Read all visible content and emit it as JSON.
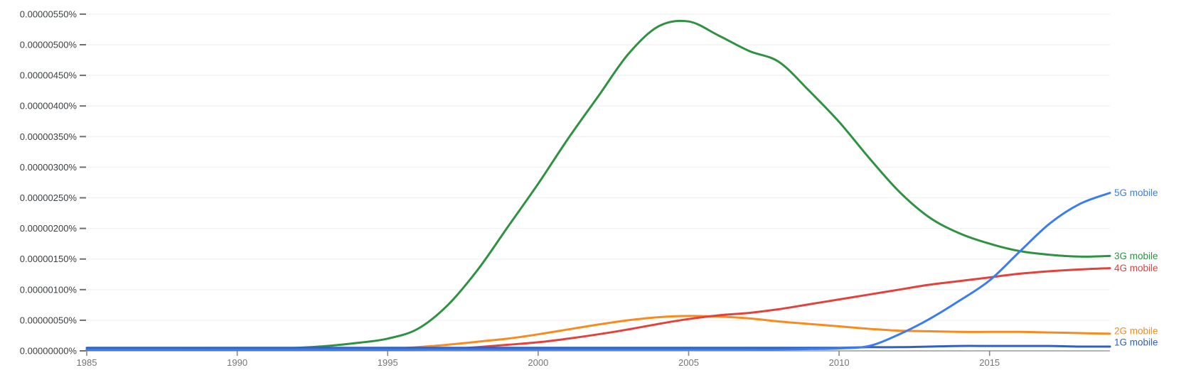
{
  "chart_data": {
    "type": "line",
    "title": "",
    "xlabel": "",
    "ylabel": "",
    "grid": true,
    "legend_position": "line-end-labels-right",
    "x_axis": {
      "range": [
        1985,
        2019
      ],
      "tick_years": [
        1985,
        1990,
        1995,
        2000,
        2005,
        2010,
        2015
      ],
      "tick_labels": [
        "1985",
        "1990",
        "1995",
        "2000",
        "2005",
        "2010",
        "2015"
      ]
    },
    "y_axis": {
      "unit": "percent",
      "range_e6": [
        0,
        5.75
      ],
      "tick_values_e6": [
        0,
        0.5,
        1.0,
        1.5,
        2.0,
        2.5,
        3.0,
        3.5,
        4.0,
        4.5,
        5.0,
        5.5
      ],
      "tick_labels": [
        "0.00000000%",
        "0.00000050%",
        "0.00000100%",
        "0.00000150%",
        "0.00000200%",
        "0.00000250%",
        "0.00000300%",
        "0.00000350%",
        "0.00000400%",
        "0.00000450%",
        "0.00000500%",
        "0.00000550%"
      ]
    },
    "value_scale_note": "series values are in millionths of a percent (1e-6 %)",
    "years": [
      1985,
      1986,
      1987,
      1988,
      1989,
      1990,
      1991,
      1992,
      1993,
      1994,
      1995,
      1996,
      1997,
      1998,
      1999,
      2000,
      2001,
      2002,
      2003,
      2004,
      2005,
      2006,
      2007,
      2008,
      2009,
      2010,
      2011,
      2012,
      2013,
      2014,
      2015,
      2016,
      2017,
      2018,
      2019
    ],
    "series": [
      {
        "name": "1G mobile",
        "color": "#3060c0",
        "draw_order": 4,
        "values_e6": [
          0.05,
          0.05,
          0.05,
          0.05,
          0.05,
          0.05,
          0.05,
          0.05,
          0.05,
          0.05,
          0.05,
          0.05,
          0.05,
          0.05,
          0.05,
          0.05,
          0.05,
          0.05,
          0.05,
          0.05,
          0.05,
          0.05,
          0.05,
          0.05,
          0.05,
          0.05,
          0.06,
          0.06,
          0.07,
          0.08,
          0.08,
          0.08,
          0.08,
          0.07,
          0.07
        ]
      },
      {
        "name": "2G mobile",
        "color": "#f78b1e",
        "draw_order": 1,
        "values_e6": [
          0.02,
          0.02,
          0.02,
          0.02,
          0.02,
          0.02,
          0.02,
          0.02,
          0.02,
          0.02,
          0.03,
          0.06,
          0.1,
          0.15,
          0.2,
          0.27,
          0.35,
          0.43,
          0.5,
          0.55,
          0.57,
          0.56,
          0.53,
          0.48,
          0.44,
          0.4,
          0.36,
          0.33,
          0.32,
          0.31,
          0.31,
          0.31,
          0.3,
          0.29,
          0.28
        ]
      },
      {
        "name": "3G mobile",
        "color": "#2f9242",
        "draw_order": 3,
        "values_e6": [
          0.02,
          0.02,
          0.02,
          0.02,
          0.02,
          0.03,
          0.03,
          0.05,
          0.08,
          0.13,
          0.2,
          0.36,
          0.75,
          1.33,
          2.03,
          2.73,
          3.47,
          4.16,
          4.85,
          5.3,
          5.38,
          5.15,
          4.9,
          4.72,
          4.25,
          3.74,
          3.15,
          2.6,
          2.18,
          1.92,
          1.75,
          1.63,
          1.57,
          1.54,
          1.55
        ]
      },
      {
        "name": "4G mobile",
        "color": "#e2423b",
        "draw_order": 2,
        "values_e6": [
          0.015,
          0.015,
          0.015,
          0.015,
          0.015,
          0.015,
          0.015,
          0.015,
          0.015,
          0.015,
          0.015,
          0.02,
          0.03,
          0.06,
          0.1,
          0.14,
          0.2,
          0.27,
          0.35,
          0.44,
          0.52,
          0.58,
          0.62,
          0.68,
          0.76,
          0.84,
          0.92,
          1.0,
          1.08,
          1.14,
          1.2,
          1.26,
          1.3,
          1.33,
          1.35
        ]
      },
      {
        "name": "5G mobile",
        "color": "#3b7cf0",
        "draw_order": 5,
        "values_e6": [
          0.02,
          0.02,
          0.02,
          0.02,
          0.02,
          0.02,
          0.02,
          0.02,
          0.02,
          0.02,
          0.02,
          0.02,
          0.02,
          0.02,
          0.02,
          0.02,
          0.02,
          0.02,
          0.02,
          0.02,
          0.02,
          0.02,
          0.02,
          0.02,
          0.03,
          0.04,
          0.08,
          0.27,
          0.52,
          0.82,
          1.15,
          1.62,
          2.08,
          2.4,
          2.58
        ]
      }
    ]
  }
}
